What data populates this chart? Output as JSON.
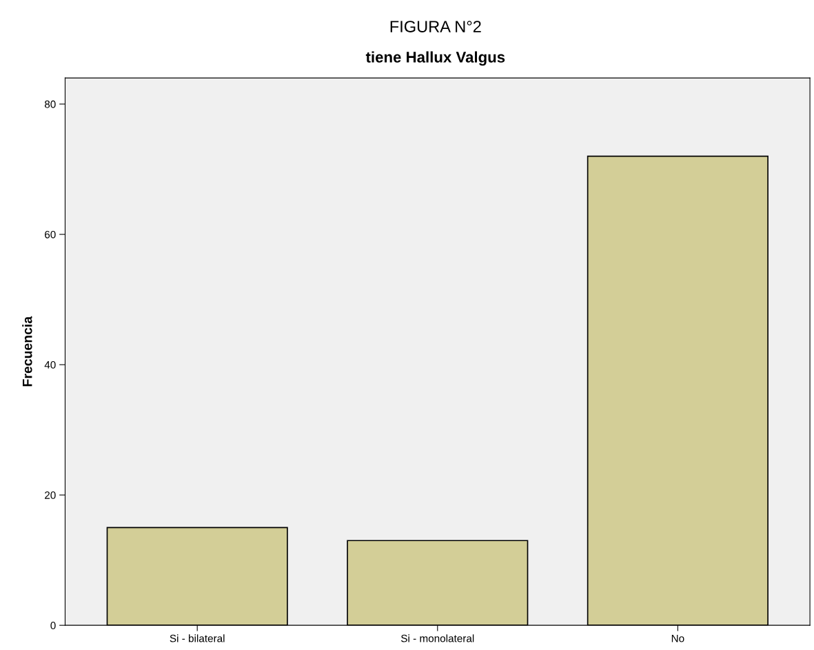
{
  "chart_data": {
    "type": "bar",
    "title": "FIGURA N°2",
    "subtitle": "tiene Hallux Valgus",
    "ylabel": "Frecuencia",
    "categories": [
      "Si - bilateral",
      "Si - monolateral",
      "No"
    ],
    "values": [
      15,
      13,
      72
    ],
    "color": "#d3ce97",
    "ylim": [
      0,
      84
    ],
    "yticks": [
      0,
      20,
      40,
      60,
      80
    ],
    "grid": false
  }
}
